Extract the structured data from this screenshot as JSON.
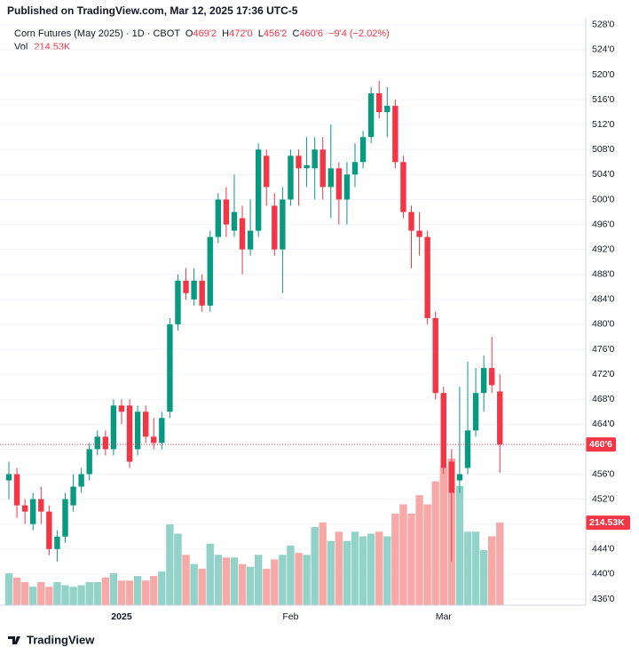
{
  "header": {
    "published": "Published on TradingView.com, Mar 12, 2025 17:36 UTC-5",
    "symbol": "Corn Futures (May 2025) · 1D · CBOT",
    "fields": [
      {
        "key": "O",
        "value": "469'2"
      },
      {
        "key": "H",
        "value": "472'0"
      },
      {
        "key": "L",
        "value": "456'2"
      },
      {
        "key": "C",
        "value": "460'6"
      }
    ],
    "change": "−9'4 (−2.02%)",
    "vol_key": "Vol"
  },
  "footer": {
    "logo": "TradingView"
  },
  "chart_data": {
    "type": "candlestick",
    "categories": [
      null,
      null,
      null,
      null,
      null,
      null,
      null,
      null,
      null,
      null,
      null,
      null,
      null,
      null,
      "2025",
      null,
      null,
      null,
      null,
      null,
      null,
      null,
      null,
      null,
      null,
      null,
      null,
      null,
      null,
      null,
      null,
      null,
      null,
      null,
      null,
      "Feb",
      null,
      null,
      null,
      null,
      null,
      null,
      null,
      null,
      null,
      null,
      null,
      null,
      null,
      null,
      null,
      null,
      null,
      null,
      "Mar",
      null,
      null,
      null,
      null,
      null,
      null,
      null
    ],
    "open": [
      455,
      456,
      451,
      448,
      452,
      450,
      444,
      446,
      451,
      454,
      456,
      460,
      462,
      460,
      467,
      467,
      460,
      466,
      462,
      461,
      466,
      480,
      487,
      484,
      487,
      483,
      494,
      500,
      495,
      497,
      492,
      495,
      507,
      499,
      492,
      500,
      507,
      505,
      505,
      508,
      502,
      505,
      500,
      504,
      506,
      510,
      517,
      514,
      515,
      506,
      498,
      495,
      494,
      481,
      469,
      458,
      455,
      457,
      463,
      469,
      473,
      469.25
    ],
    "high": [
      458,
      457,
      452,
      453,
      454,
      451,
      447,
      453,
      456,
      457,
      461,
      463,
      463,
      468,
      468,
      468,
      467,
      467,
      465,
      466,
      481,
      488,
      489,
      489,
      488,
      495,
      501,
      502,
      504,
      499,
      500,
      509,
      508,
      501,
      502,
      508,
      508,
      510,
      510,
      510,
      512,
      506,
      506,
      509,
      511,
      518,
      519,
      518,
      516,
      507,
      499,
      498,
      495,
      482,
      470,
      460,
      470,
      474,
      473,
      475,
      478,
      472
    ],
    "low": [
      452,
      449,
      448,
      447,
      448,
      443,
      442,
      445,
      450,
      453,
      455,
      459,
      459,
      459,
      464,
      457,
      459,
      461,
      460,
      460,
      465,
      479,
      484,
      483,
      482,
      482,
      493,
      494,
      494,
      488,
      491,
      494,
      499,
      491,
      485,
      499,
      499,
      502,
      500,
      500,
      497,
      496,
      496,
      502,
      505,
      509,
      513,
      510,
      505,
      497,
      489,
      491,
      480,
      468,
      456,
      442,
      453,
      456,
      462,
      466,
      469,
      456.25
    ],
    "close": [
      456,
      451,
      450,
      452,
      450,
      444,
      446,
      452,
      454,
      456,
      460,
      462,
      460,
      467,
      466,
      458,
      466,
      462,
      461,
      465,
      480,
      487,
      485,
      487,
      483,
      494,
      500,
      496,
      498,
      492,
      495,
      508,
      502,
      492,
      500,
      507,
      505,
      505.5,
      508,
      502,
      505,
      500,
      504,
      506,
      510,
      517,
      514,
      515,
      506,
      498,
      495,
      494,
      481,
      469,
      457,
      453,
      456,
      463,
      469,
      473,
      470.25,
      460.75
    ],
    "volume": [
      83000,
      72000,
      60000,
      48000,
      60000,
      48000,
      60000,
      52000,
      48000,
      52000,
      60000,
      60000,
      72000,
      83000,
      64000,
      64000,
      76000,
      64000,
      76000,
      88000,
      210000,
      186000,
      131000,
      107000,
      95000,
      160000,
      131000,
      124000,
      124000,
      107000,
      100000,
      131000,
      95000,
      119000,
      131000,
      155000,
      136000,
      131000,
      203000,
      215000,
      167000,
      191000,
      167000,
      191000,
      179000,
      186000,
      191000,
      179000,
      238000,
      262000,
      238000,
      286000,
      262000,
      322000,
      358000,
      381000,
      310000,
      191000,
      191000,
      143000,
      179000,
      214530
    ],
    "volume_labels": [
      null,
      null,
      null,
      null,
      null,
      null,
      null,
      null,
      null,
      null,
      null,
      null,
      null,
      null,
      null,
      null,
      null,
      null,
      null,
      null,
      null,
      null,
      null,
      null,
      null,
      null,
      null,
      null,
      null,
      null,
      null,
      null,
      null,
      null,
      null,
      null,
      null,
      null,
      null,
      null,
      null,
      null,
      null,
      null,
      null,
      null,
      null,
      null,
      null,
      null,
      null,
      null,
      null,
      null,
      null,
      null,
      null,
      null,
      null,
      null,
      null,
      "214.53K"
    ],
    "up_color": "#089981",
    "down_color": "#f23645",
    "up_volume_color": "#92d2c8",
    "down_volume_color": "#f7a9a7",
    "ylim": [
      435,
      528.4
    ],
    "yticks": [
      {
        "value": 436,
        "label": "436'0"
      },
      {
        "value": 440,
        "label": "440'0"
      },
      {
        "value": 444,
        "label": "444'0"
      },
      {
        "value": 448,
        "label": "448'0"
      },
      {
        "value": 452,
        "label": "452'0"
      },
      {
        "value": 456,
        "label": "456'0"
      },
      {
        "value": 460,
        "label": "460'0"
      },
      {
        "value": 464,
        "label": "464'0"
      },
      {
        "value": 468,
        "label": "468'0"
      },
      {
        "value": 472,
        "label": "472'0"
      },
      {
        "value": 476,
        "label": "476'0"
      },
      {
        "value": 480,
        "label": "480'0"
      },
      {
        "value": 484,
        "label": "484'0"
      },
      {
        "value": 488,
        "label": "488'0"
      },
      {
        "value": 492,
        "label": "492'0"
      },
      {
        "value": 496,
        "label": "496'0"
      },
      {
        "value": 500,
        "label": "500'0"
      },
      {
        "value": 504,
        "label": "504'0"
      },
      {
        "value": 508,
        "label": "508'0"
      },
      {
        "value": 512,
        "label": "512'0"
      },
      {
        "value": 516,
        "label": "516'0"
      },
      {
        "value": 520,
        "label": "520'0"
      },
      {
        "value": 524,
        "label": "524'0"
      },
      {
        "value": 528,
        "label": "528'0"
      }
    ],
    "grid": true
  }
}
